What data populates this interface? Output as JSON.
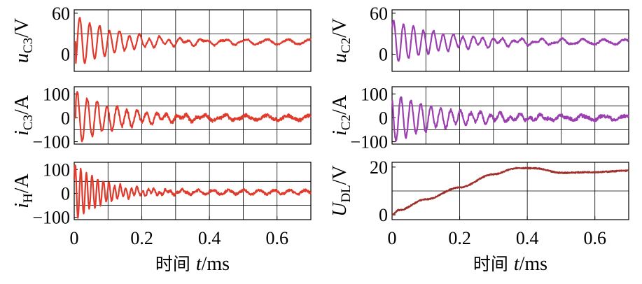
{
  "colors": {
    "red": "#e03a2c",
    "purple": "#9b3fb0",
    "brown": "#a0302c",
    "axis": "#000000",
    "grid": "#000000"
  },
  "chart_data": [
    {
      "id": "uc3",
      "type": "line",
      "ylabel_main": "u",
      "ylabel_sub": "C3",
      "ylabel_unit": "/V",
      "xlim": [
        0,
        0.7
      ],
      "ylim": [
        -25,
        65
      ],
      "yticks": [
        {
          "v": 60,
          "label": "60"
        },
        {
          "v": 0,
          "label": "0"
        }
      ],
      "xgrid": [
        0.1,
        0.2,
        0.3,
        0.4,
        0.5,
        0.6
      ],
      "ygrid": [
        30
      ],
      "color": "red",
      "signal": {
        "kind": "osc",
        "t0": 0.005,
        "base": 18,
        "a": 38,
        "f": 34,
        "tau": 0.13,
        "phase": -0.9,
        "noise": 1.2,
        "tail_a": 3.5,
        "tail_f": 16
      }
    },
    {
      "id": "uc2",
      "type": "line",
      "ylabel_main": "u",
      "ylabel_sub": "C2",
      "ylabel_unit": "/V",
      "xlim": [
        0,
        0.7
      ],
      "ylim": [
        -25,
        65
      ],
      "yticks": [
        {
          "v": 60,
          "label": "60"
        },
        {
          "v": 0,
          "label": "0"
        }
      ],
      "xgrid": [
        0.1,
        0.2,
        0.3,
        0.4,
        0.5,
        0.6
      ],
      "ygrid": [
        30
      ],
      "color": "purple",
      "signal": {
        "kind": "osc",
        "t0": 0.0,
        "base": 18,
        "a": 32,
        "f": 34,
        "tau": 0.16,
        "phase": 0.6,
        "noise": 1.2,
        "tail_a": 3.5,
        "tail_f": 16
      }
    },
    {
      "id": "ic3",
      "type": "line",
      "ylabel_main": "i",
      "ylabel_sub": "C3",
      "ylabel_unit": "/A",
      "xlim": [
        0,
        0.7
      ],
      "ylim": [
        -110,
        130
      ],
      "yticks": [
        {
          "v": 100,
          "label": "100"
        },
        {
          "v": 0,
          "label": "0"
        },
        {
          "v": -100,
          "label": "−100"
        }
      ],
      "xgrid": [
        0.1,
        0.2,
        0.3,
        0.4,
        0.5,
        0.6
      ],
      "ygrid": [
        50,
        -50
      ],
      "color": "red",
      "signal": {
        "kind": "osc",
        "t0": 0.005,
        "base": 0,
        "a": 110,
        "f": 34,
        "tau": 0.13,
        "phase": 0.7,
        "noise": 7,
        "tail_a": 9,
        "tail_f": 16
      }
    },
    {
      "id": "ic2",
      "type": "line",
      "ylabel_main": "i",
      "ylabel_sub": "C2",
      "ylabel_unit": "/A",
      "xlim": [
        0,
        0.7
      ],
      "ylim": [
        -110,
        130
      ],
      "yticks": [
        {
          "v": 100,
          "label": "100"
        },
        {
          "v": 0,
          "label": "0"
        },
        {
          "v": -100,
          "label": "−100"
        }
      ],
      "xgrid": [
        0.1,
        0.2,
        0.3,
        0.4,
        0.5,
        0.6
      ],
      "ygrid": [
        50,
        -50
      ],
      "color": "purple",
      "signal": {
        "kind": "osc",
        "t0": 0.0,
        "base": 0,
        "a": 100,
        "f": 34,
        "tau": 0.16,
        "phase": 2.2,
        "noise": 7,
        "tail_a": 9,
        "tail_f": 16
      }
    },
    {
      "id": "ih",
      "type": "line",
      "ylabel_main": "i",
      "ylabel_sub": "H",
      "ylabel_unit": "/A",
      "xlim": [
        0,
        0.7
      ],
      "ylim": [
        -110,
        130
      ],
      "yticks": [
        {
          "v": 100,
          "label": "100"
        },
        {
          "v": 0,
          "label": "0"
        },
        {
          "v": -100,
          "label": "−100"
        }
      ],
      "xgrid": [
        0.1,
        0.2,
        0.3,
        0.4,
        0.5,
        0.6
      ],
      "ygrid": [
        50,
        -50
      ],
      "color": "red",
      "xticks": [
        {
          "v": 0,
          "label": "0"
        },
        {
          "v": 0.2,
          "label": "0.2"
        },
        {
          "v": 0.4,
          "label": "0.4"
        },
        {
          "v": 0.6,
          "label": "0.6"
        }
      ],
      "xlabel_prefix": "时间 ",
      "xlabel_var": "t",
      "xlabel_unit": "/ms",
      "signal": {
        "kind": "osc",
        "t0": 0.0,
        "base": 5,
        "a": 120,
        "f": 60,
        "tau": 0.09,
        "phase": 0.5,
        "noise": 5,
        "tail_a": 8,
        "tail_f": 22
      }
    },
    {
      "id": "udl",
      "type": "line",
      "ylabel_main": "U",
      "ylabel_sub": "DL",
      "ylabel_unit": "/V",
      "xlim": [
        0,
        0.7
      ],
      "ylim": [
        -2,
        22
      ],
      "yticks": [
        {
          "v": 20,
          "label": "20"
        },
        {
          "v": 0,
          "label": "0"
        }
      ],
      "xgrid": [
        0.2,
        0.4,
        0.6
      ],
      "ygrid": [
        10
      ],
      "color": "brown",
      "xticks": [
        {
          "v": 0,
          "label": "0"
        },
        {
          "v": 0.2,
          "label": "0.2"
        },
        {
          "v": 0.4,
          "label": "0.4"
        },
        {
          "v": 0.6,
          "label": "0.6"
        }
      ],
      "xlabel_prefix": "时间 ",
      "xlabel_var": "t",
      "xlabel_unit": "/ms",
      "signal": {
        "kind": "rise",
        "points": [
          [
            0,
            0
          ],
          [
            0.02,
            2
          ],
          [
            0.1,
            6.5
          ],
          [
            0.2,
            11.5
          ],
          [
            0.3,
            17
          ],
          [
            0.37,
            19.6
          ],
          [
            0.42,
            19.5
          ],
          [
            0.5,
            17.6
          ],
          [
            0.6,
            17.9
          ],
          [
            0.7,
            18.5
          ]
        ],
        "noise": 0.25
      }
    }
  ]
}
